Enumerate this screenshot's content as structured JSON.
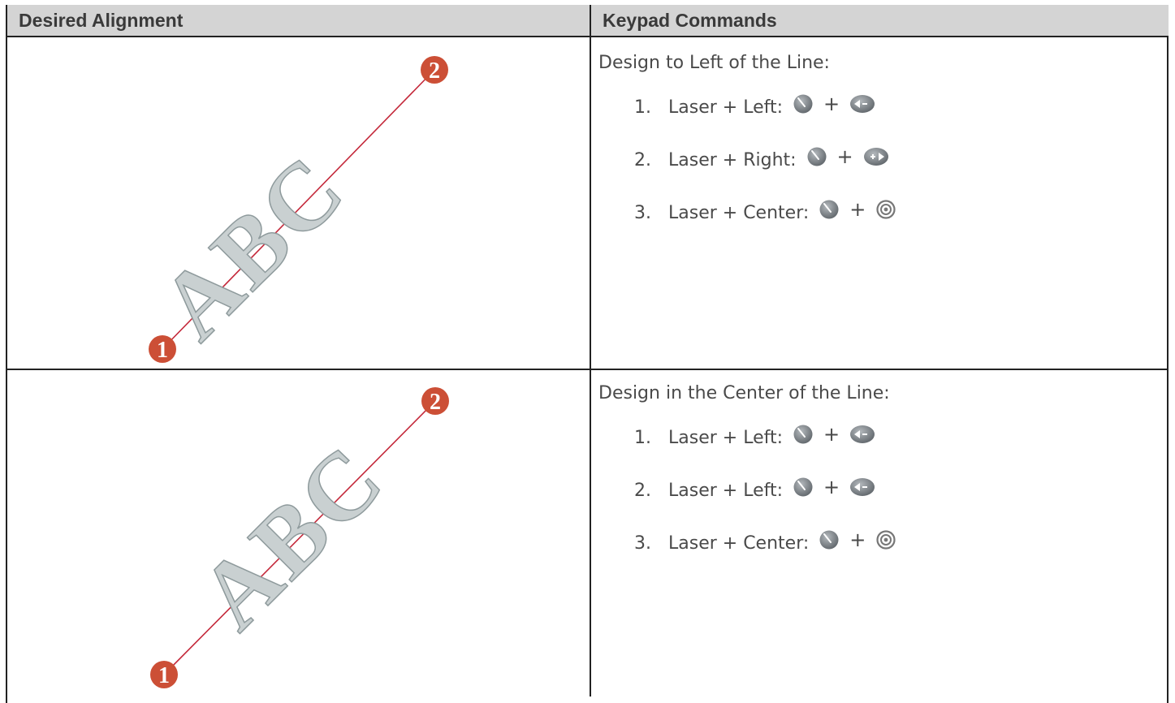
{
  "table": {
    "headers": [
      "Desired Alignment",
      "Keypad Commands"
    ],
    "rows": [
      {
        "illustration": {
          "start": "1",
          "end": "2",
          "design": "ABC"
        },
        "heading": "Design to Left of the Line:",
        "steps": [
          {
            "number": "1.",
            "label": "Laser + Left:",
            "plus": "+"
          },
          {
            "number": "2.",
            "label": "Laser + Right:",
            "plus": "+"
          },
          {
            "number": "3.",
            "label": "Laser + Center:",
            "plus": "+"
          }
        ]
      },
      {
        "illustration": {
          "start": "1",
          "end": "2",
          "design": "ABC"
        },
        "heading": "Design in the Center of the Line:",
        "steps": [
          {
            "number": "1.",
            "label": "Laser + Left:",
            "plus": "+"
          },
          {
            "number": "2.",
            "label": "Laser + Left:",
            "plus": "+"
          },
          {
            "number": "3.",
            "label": "Laser + Center:",
            "plus": "+"
          }
        ]
      }
    ]
  }
}
